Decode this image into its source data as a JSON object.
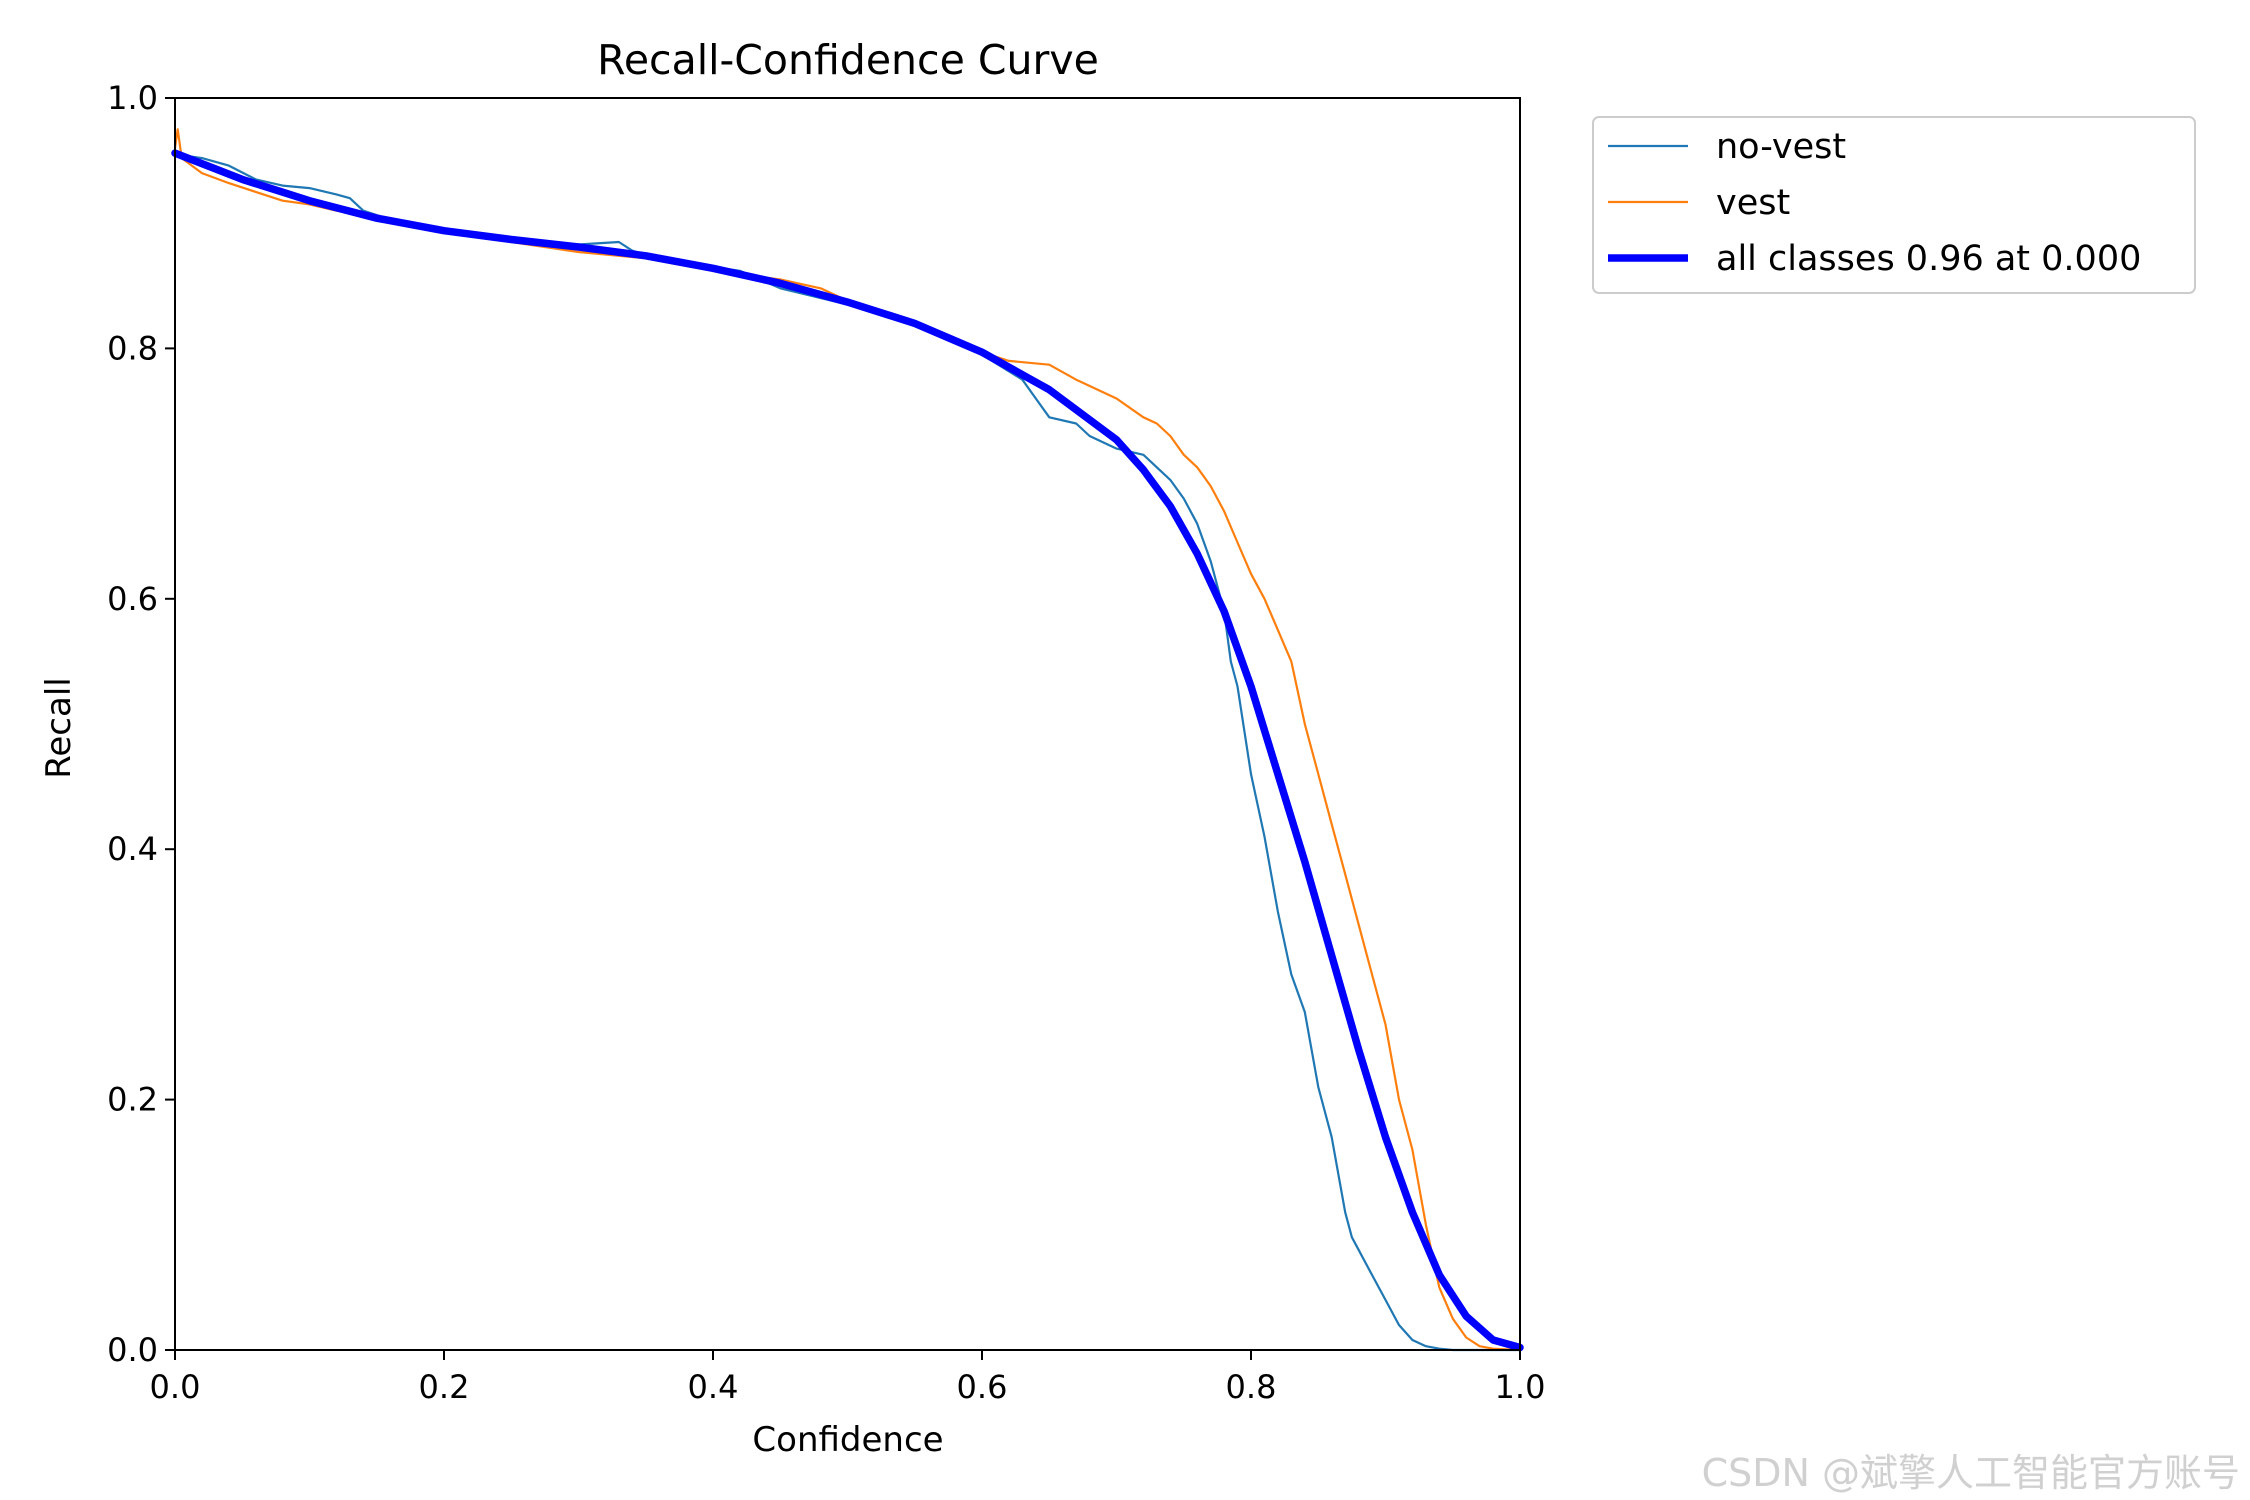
{
  "chart_data": {
    "type": "line",
    "title": "Recall-Confidence Curve",
    "xlabel": "Confidence",
    "ylabel": "Recall",
    "xlim": [
      0,
      1
    ],
    "ylim": [
      0,
      1
    ],
    "xticks": [
      "0.0",
      "0.2",
      "0.4",
      "0.6",
      "0.8",
      "1.0"
    ],
    "yticks": [
      "0.0",
      "0.2",
      "0.4",
      "0.6",
      "0.8",
      "1.0"
    ],
    "grid": false,
    "legend_position": "outside-top-right",
    "series": [
      {
        "name": "no-vest",
        "color": "#1f77b4",
        "x": [
          0.0,
          0.02,
          0.04,
          0.06,
          0.08,
          0.1,
          0.12,
          0.13,
          0.14,
          0.16,
          0.2,
          0.25,
          0.3,
          0.33,
          0.34,
          0.36,
          0.4,
          0.42,
          0.45,
          0.5,
          0.55,
          0.6,
          0.63,
          0.64,
          0.65,
          0.67,
          0.68,
          0.7,
          0.72,
          0.73,
          0.74,
          0.75,
          0.76,
          0.77,
          0.78,
          0.785,
          0.79,
          0.8,
          0.81,
          0.82,
          0.83,
          0.84,
          0.85,
          0.86,
          0.87,
          0.875,
          0.88,
          0.89,
          0.9,
          0.91,
          0.92,
          0.93,
          0.94,
          0.95,
          1.0
        ],
        "y": [
          0.955,
          0.952,
          0.946,
          0.935,
          0.93,
          0.928,
          0.923,
          0.92,
          0.91,
          0.903,
          0.893,
          0.887,
          0.883,
          0.885,
          0.878,
          0.872,
          0.865,
          0.862,
          0.848,
          0.835,
          0.82,
          0.795,
          0.775,
          0.76,
          0.745,
          0.74,
          0.73,
          0.72,
          0.715,
          0.705,
          0.695,
          0.68,
          0.66,
          0.63,
          0.59,
          0.55,
          0.53,
          0.46,
          0.41,
          0.35,
          0.3,
          0.27,
          0.21,
          0.17,
          0.11,
          0.09,
          0.08,
          0.06,
          0.04,
          0.02,
          0.008,
          0.003,
          0.001,
          0.0,
          0.0
        ]
      },
      {
        "name": "vest",
        "color": "#ff7f0e",
        "x": [
          0.0,
          0.002,
          0.005,
          0.02,
          0.04,
          0.06,
          0.08,
          0.1,
          0.12,
          0.15,
          0.2,
          0.25,
          0.3,
          0.35,
          0.4,
          0.45,
          0.48,
          0.5,
          0.55,
          0.6,
          0.62,
          0.65,
          0.67,
          0.7,
          0.72,
          0.73,
          0.74,
          0.75,
          0.76,
          0.77,
          0.78,
          0.79,
          0.8,
          0.81,
          0.82,
          0.83,
          0.84,
          0.85,
          0.86,
          0.87,
          0.88,
          0.89,
          0.9,
          0.91,
          0.92,
          0.93,
          0.94,
          0.95,
          0.96,
          0.97,
          0.98,
          1.0
        ],
        "y": [
          0.96,
          0.975,
          0.952,
          0.94,
          0.932,
          0.925,
          0.918,
          0.915,
          0.91,
          0.905,
          0.894,
          0.885,
          0.877,
          0.872,
          0.862,
          0.855,
          0.848,
          0.838,
          0.82,
          0.797,
          0.79,
          0.787,
          0.775,
          0.76,
          0.745,
          0.74,
          0.73,
          0.715,
          0.705,
          0.69,
          0.67,
          0.645,
          0.62,
          0.6,
          0.575,
          0.55,
          0.5,
          0.46,
          0.42,
          0.38,
          0.34,
          0.3,
          0.26,
          0.2,
          0.16,
          0.1,
          0.05,
          0.025,
          0.01,
          0.003,
          0.001,
          0.0
        ]
      },
      {
        "name": "all classes 0.96 at 0.000",
        "color": "#0000ff",
        "x": [
          0.0,
          0.05,
          0.1,
          0.15,
          0.2,
          0.25,
          0.3,
          0.35,
          0.4,
          0.45,
          0.5,
          0.55,
          0.6,
          0.65,
          0.7,
          0.72,
          0.74,
          0.76,
          0.78,
          0.8,
          0.82,
          0.84,
          0.86,
          0.88,
          0.9,
          0.92,
          0.94,
          0.96,
          0.98,
          1.0
        ],
        "y": [
          0.956,
          0.935,
          0.918,
          0.904,
          0.894,
          0.887,
          0.881,
          0.874,
          0.864,
          0.852,
          0.837,
          0.82,
          0.797,
          0.767,
          0.727,
          0.703,
          0.674,
          0.636,
          0.59,
          0.53,
          0.46,
          0.39,
          0.315,
          0.24,
          0.17,
          0.11,
          0.06,
          0.027,
          0.008,
          0.002
        ]
      }
    ]
  },
  "watermark": "CSDN @斌擎人工智能官方账号"
}
